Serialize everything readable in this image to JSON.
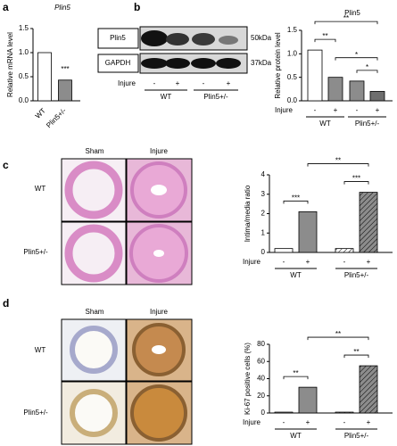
{
  "panel_labels": [
    "a",
    "b",
    "c",
    "d"
  ],
  "blot": {
    "rows": [
      "Plin5",
      "GAPDH"
    ],
    "sizes": [
      "50kDa",
      "37kDa"
    ],
    "injure_label": "Injure",
    "injure_signs": [
      "-",
      "+",
      "-",
      "+"
    ],
    "groups": [
      "WT",
      "Plin5+/-"
    ]
  },
  "histology": [
    {
      "columns": [
        "Sham",
        "Injure"
      ],
      "rows": [
        "WT",
        "Plin5+/-"
      ]
    },
    {
      "columns": [
        "Sham",
        "Injure"
      ],
      "rows": [
        "WT",
        "Plin5+/-"
      ]
    }
  ],
  "chart_data": [
    {
      "type": "bar",
      "title": "Plin5",
      "y_label": "Relative mRNA level",
      "categories": [
        "WT",
        "Plin5+/-"
      ],
      "values": [
        1.0,
        0.43
      ],
      "colors": [
        "#ffffff",
        "#8c8c8c"
      ],
      "hatched": [
        false,
        false
      ],
      "ylim": [
        0,
        1.5
      ],
      "yticks": [
        {
          "value": 0,
          "label": "0.0"
        },
        0.5,
        {
          "value": 1,
          "label": "1.0"
        },
        1.5
      ],
      "annotations": [
        "***"
      ]
    },
    {
      "type": "bar",
      "title": "Plin5",
      "y_label": "Relative protein level",
      "category_label": "Injure",
      "categories": [
        "-",
        "+",
        "-",
        "+"
      ],
      "groups": [
        "WT",
        "Plin5+/-"
      ],
      "values": [
        1.08,
        0.5,
        0.42,
        0.2
      ],
      "colors": [
        "#ffffff",
        "#8c8c8c",
        "#8c8c8c",
        "#6e6e6e"
      ],
      "hatched": [
        false,
        false,
        false,
        false
      ],
      "ylim": [
        0,
        1.5
      ],
      "yticks": [
        {
          "value": 0,
          "label": "0.0"
        },
        0.5,
        {
          "value": 1,
          "label": "1.0"
        },
        1.5
      ],
      "annotations": [
        "**",
        "**",
        "*",
        "*"
      ]
    },
    {
      "type": "bar",
      "y_label": "Intima/media ratio",
      "category_label": "Injure",
      "categories": [
        "-",
        "+",
        "-",
        "+"
      ],
      "groups": [
        "WT",
        "Plin5+/-"
      ],
      "values": [
        0.2,
        2.1,
        0.2,
        3.1
      ],
      "colors": [
        "#ffffff",
        "#8c8c8c",
        "#ffffff",
        "#8c8c8c"
      ],
      "hatched": [
        false,
        false,
        true,
        true
      ],
      "ylim": [
        0,
        4
      ],
      "yticks": [
        0,
        1,
        2,
        3,
        4
      ],
      "annotations": [
        "***",
        "***",
        "**"
      ]
    },
    {
      "type": "bar",
      "y_label": "Ki-67 positive cells (%)",
      "category_label": "Injure",
      "categories": [
        "-",
        "+",
        "-",
        "+"
      ],
      "groups": [
        "WT",
        "Plin5+/-"
      ],
      "values": [
        1,
        30,
        1,
        55
      ],
      "colors": [
        "#ffffff",
        "#8c8c8c",
        "#ffffff",
        "#8c8c8c"
      ],
      "hatched": [
        false,
        false,
        true,
        true
      ],
      "ylim": [
        0,
        80
      ],
      "yticks": [
        0,
        20,
        40,
        60,
        80
      ],
      "annotations": [
        "**",
        "**",
        "**"
      ]
    }
  ]
}
